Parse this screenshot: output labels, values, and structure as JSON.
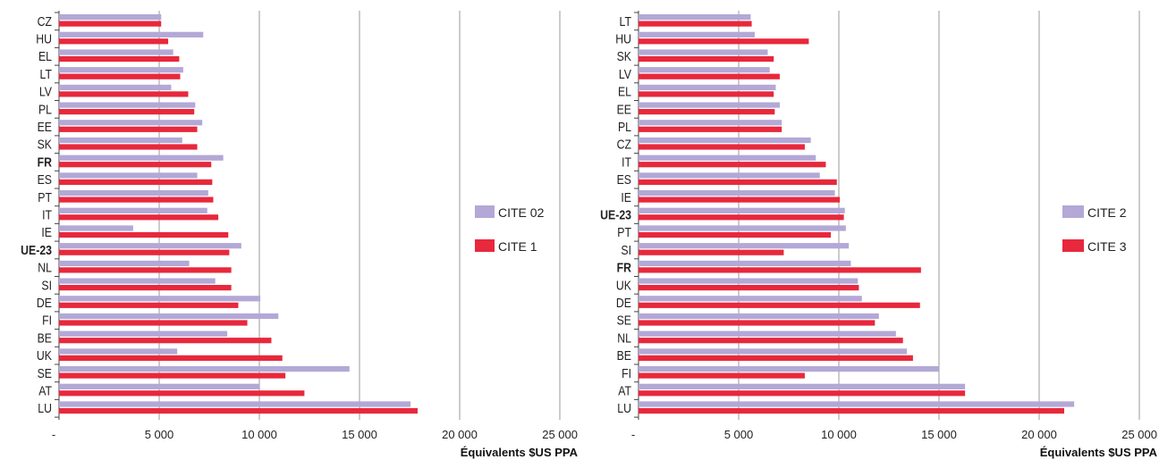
{
  "chart_data": [
    {
      "type": "bar",
      "orientation": "horizontal",
      "categories": [
        "CZ",
        "HU",
        "EL",
        "LT",
        "LV",
        "PL",
        "EE",
        "SK",
        "FR",
        "ES",
        "PT",
        "IT",
        "IE",
        "UE-23",
        "NL",
        "SI",
        "DE",
        "FI",
        "BE",
        "UK",
        "SE",
        "AT",
        "LU"
      ],
      "highlight": {
        "FR": "#1aa3e0",
        "UE-23": "#e0209a"
      },
      "series": [
        {
          "name": "CITE 02",
          "color": "#b3a8d6",
          "values": [
            5100,
            7200,
            5700,
            6200,
            5600,
            6800,
            7150,
            6150,
            8200,
            6900,
            7450,
            7400,
            3700,
            9100,
            6500,
            7800,
            10050,
            10950,
            8400,
            5900,
            14500,
            10000,
            17550
          ]
        },
        {
          "name": "CITE 1",
          "color": "#e8283c",
          "values": [
            5100,
            5450,
            6000,
            6050,
            6450,
            6750,
            6900,
            6900,
            7600,
            7650,
            7700,
            7950,
            8450,
            8500,
            8600,
            8600,
            8950,
            9400,
            10600,
            11150,
            11300,
            12250,
            17900
          ]
        }
      ],
      "xlim": [
        0,
        25000
      ],
      "xticks": [
        "-",
        "5 000",
        "10 000",
        "15 000",
        "20 000",
        "25 000"
      ],
      "xlabel": "Équivalents $US PPA",
      "grid": "vertical",
      "legend": "right"
    },
    {
      "type": "bar",
      "orientation": "horizontal",
      "categories": [
        "LT",
        "HU",
        "SK",
        "LV",
        "EL",
        "EE",
        "PL",
        "CZ",
        "IT",
        "ES",
        "IE",
        "UE-23",
        "PT",
        "SI",
        "FR",
        "UK",
        "DE",
        "SE",
        "NL",
        "BE",
        "FI",
        "AT",
        "LU"
      ],
      "highlight": {
        "FR": "#1aa3e0",
        "UE-23": "#e0209a"
      },
      "series": [
        {
          "name": "CITE 2",
          "color": "#b3a8d6",
          "values": [
            5600,
            5800,
            6450,
            6550,
            6850,
            7050,
            7150,
            8600,
            8850,
            9050,
            9800,
            10300,
            10350,
            10500,
            10600,
            10950,
            11150,
            12000,
            12850,
            13400,
            15000,
            16300,
            21750
          ]
        },
        {
          "name": "CITE 3",
          "color": "#e8283c",
          "values": [
            5650,
            8500,
            6750,
            7050,
            6750,
            6800,
            7150,
            8300,
            9350,
            9900,
            10050,
            10250,
            9600,
            7250,
            14100,
            11000,
            14050,
            11800,
            13200,
            13700,
            8300,
            16300,
            21250
          ]
        }
      ],
      "xlim": [
        0,
        25000
      ],
      "xticks": [
        "-",
        "5 000",
        "10 000",
        "15 000",
        "20 000",
        "25 000"
      ],
      "xlabel": "Équivalents $US PPA",
      "grid": "vertical",
      "legend": "right"
    }
  ]
}
